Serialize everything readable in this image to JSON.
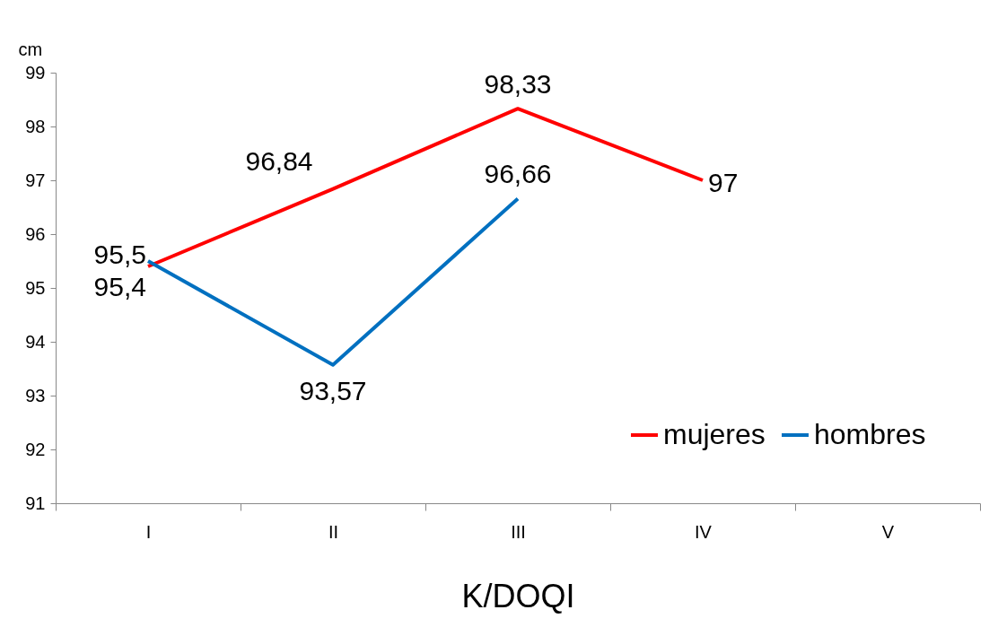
{
  "chart_data": {
    "type": "line",
    "xlabel": "K/DOQI",
    "ylabel": "cm",
    "categories": [
      "I",
      "II",
      "III",
      "IV",
      "V"
    ],
    "series": [
      {
        "name": "mujeres",
        "color": "#ff0000",
        "values": [
          95.4,
          96.84,
          98.33,
          97,
          null
        ],
        "value_labels": [
          "95,4",
          "96,84",
          "98,33",
          "97",
          null
        ]
      },
      {
        "name": "hombres",
        "color": "#0070c0",
        "values": [
          95.5,
          93.57,
          96.66,
          null,
          null
        ],
        "value_labels": [
          "95,5",
          "93,57",
          "96,66",
          null,
          null
        ]
      }
    ],
    "ylim": [
      91,
      99
    ],
    "yticks": [
      91,
      92,
      93,
      94,
      95,
      96,
      97,
      98,
      99
    ],
    "grid": false,
    "legend": "bottom right",
    "marker": "none",
    "line_style": "solid"
  }
}
